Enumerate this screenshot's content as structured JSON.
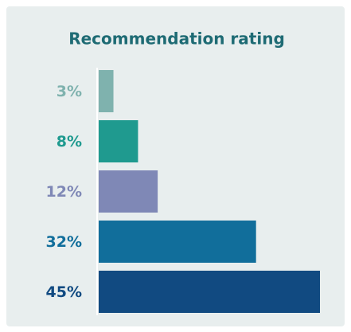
{
  "chart_data": {
    "type": "bar",
    "orientation": "horizontal",
    "title": "Recommendation rating",
    "categories": [
      null,
      null,
      null,
      null,
      null
    ],
    "values": [
      3,
      8,
      12,
      32,
      45
    ],
    "value_labels": [
      "3%",
      "8%",
      "12%",
      "32%",
      "45%"
    ],
    "colors": [
      "#7fb2ae",
      "#1f9a8f",
      "#7f88b6",
      "#116e9b",
      "#114a81"
    ]
  }
}
